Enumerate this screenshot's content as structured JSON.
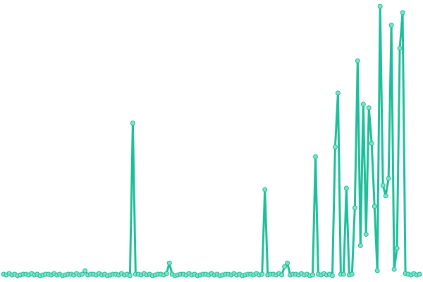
{
  "chart_data": {
    "type": "line",
    "values": [
      3,
      2,
      4,
      2,
      3,
      1,
      2,
      3,
      3,
      2,
      4,
      2,
      3,
      1,
      2,
      3,
      3,
      2,
      4,
      2,
      3,
      1,
      2,
      3,
      3,
      2,
      4,
      2,
      3,
      8,
      2,
      3,
      3,
      2,
      4,
      2,
      3,
      1,
      2,
      3,
      3,
      2,
      4,
      2,
      3,
      1,
      219,
      3,
      3,
      2,
      4,
      2,
      3,
      1,
      2,
      3,
      3,
      2,
      4,
      19,
      3,
      1,
      2,
      3,
      3,
      2,
      4,
      2,
      3,
      1,
      2,
      3,
      3,
      2,
      4,
      2,
      3,
      1,
      2,
      3,
      3,
      2,
      4,
      2,
      3,
      1,
      2,
      3,
      3,
      2,
      4,
      2,
      3,
      124,
      2,
      3,
      3,
      2,
      4,
      2,
      14,
      19,
      2,
      3,
      3,
      2,
      4,
      2,
      3,
      1,
      2,
      171,
      3,
      2,
      4,
      2,
      3,
      1,
      185,
      262,
      3,
      3,
      126,
      2,
      3,
      98,
      308,
      44,
      246,
      60,
      241,
      190,
      100,
      8,
      386,
      130,
      115,
      140,
      359,
      10,
      40,
      326,
      377,
      4,
      3,
      2,
      4,
      2,
      3
    ],
    "color": "#1dbf9a",
    "point_color": "#7fe0c6",
    "ylim": [
      0,
      390
    ]
  }
}
